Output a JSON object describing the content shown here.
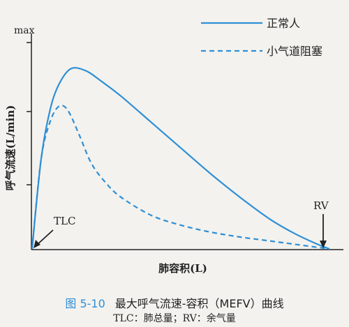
{
  "chart_data": {
    "type": "line",
    "ylabel": "呼气流速(L/min)",
    "xlabel": "肺容积(L)",
    "y_max_label": "max",
    "annotations": {
      "left": "TLC",
      "right": "RV"
    },
    "x_range": [
      "TLC",
      "RV"
    ],
    "ylim": [
      0,
      1
    ],
    "grid": false,
    "legend_position": "top-right",
    "series": [
      {
        "name": "正常人",
        "style": "solid",
        "x": [
          0,
          0.03,
          0.06,
          0.09,
          0.13,
          0.18,
          0.23,
          0.3,
          0.4,
          0.5,
          0.6,
          0.7,
          0.8,
          0.88,
          0.95,
          1.0
        ],
        "y": [
          0,
          0.45,
          0.7,
          0.83,
          0.91,
          0.9,
          0.85,
          0.77,
          0.64,
          0.51,
          0.38,
          0.26,
          0.15,
          0.08,
          0.03,
          0
        ]
      },
      {
        "name": "小气道阻塞",
        "style": "dashed",
        "x": [
          0,
          0.03,
          0.06,
          0.09,
          0.12,
          0.16,
          0.2,
          0.25,
          0.3,
          0.4,
          0.5,
          0.6,
          0.7,
          0.8,
          0.9,
          1.0
        ],
        "y": [
          0,
          0.45,
          0.64,
          0.72,
          0.7,
          0.57,
          0.43,
          0.33,
          0.26,
          0.17,
          0.12,
          0.085,
          0.06,
          0.04,
          0.02,
          0
        ]
      }
    ]
  },
  "caption": {
    "figure_no": "图 5-10",
    "title": "最大呼气流速-容积（MEFV）曲线",
    "note": "TLC：肺总量；RV：余气量"
  },
  "colors": {
    "line": "#2e8fd6",
    "axis": "#222222",
    "caption_accent": "#2e8fd6"
  }
}
